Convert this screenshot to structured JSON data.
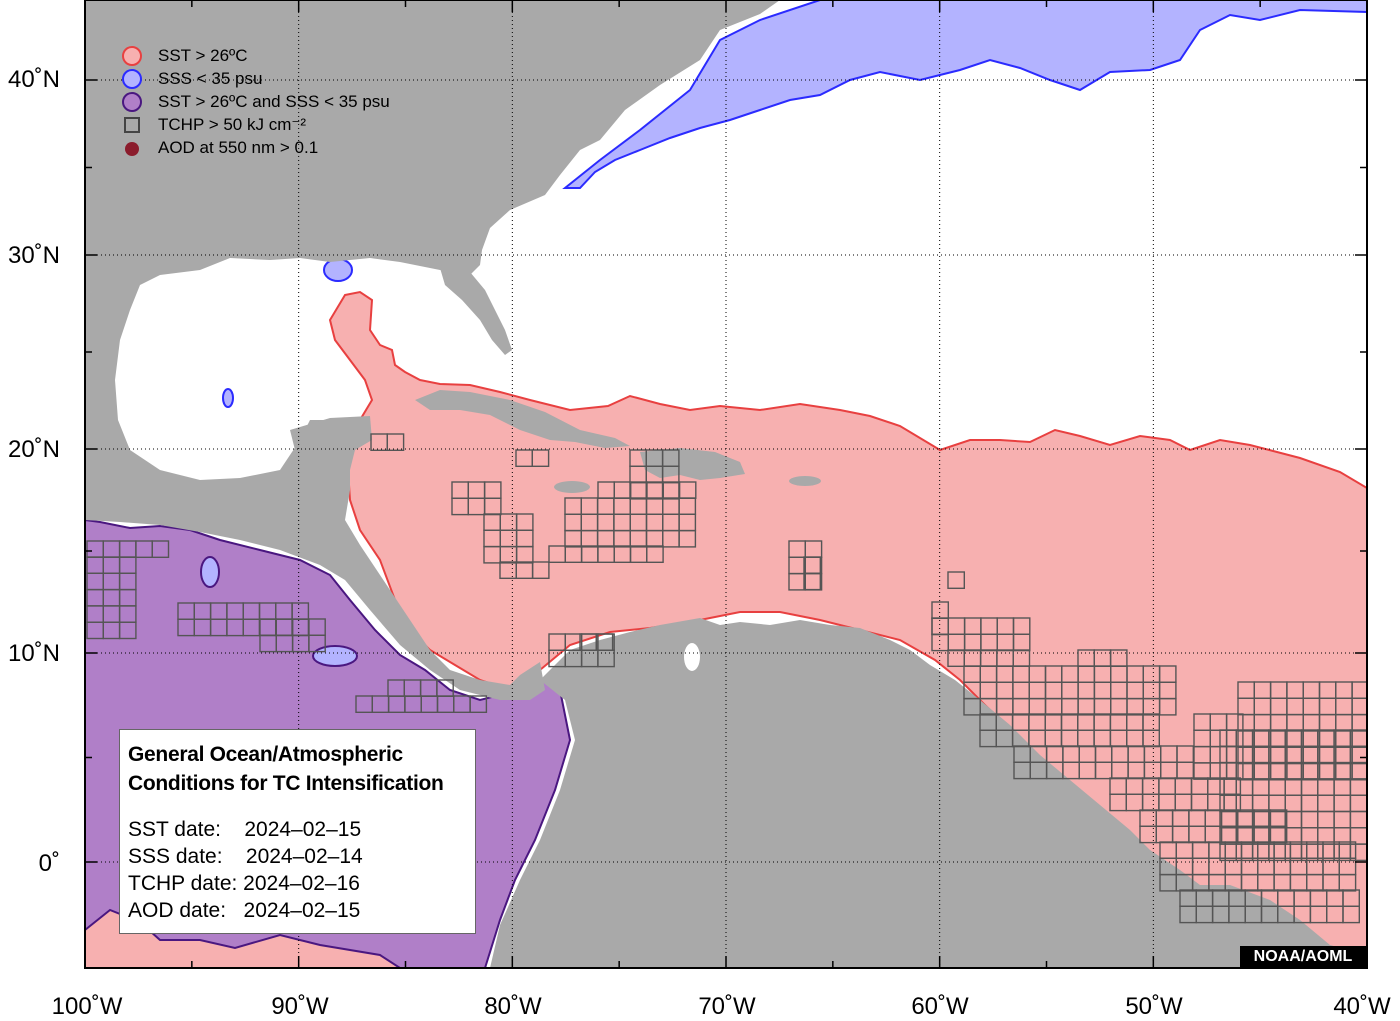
{
  "colors": {
    "land": "#a9a9a9",
    "ocean": "#ffffff",
    "sst": "#f7b0b0",
    "sst_outline": "#e84040",
    "sss": "#b3b3ff",
    "sss_outline": "#2b2bff",
    "both": "#b07fc8",
    "both_outline": "#4a1780",
    "tchp_box": "#555555",
    "aod": "#8b1c2c"
  },
  "axes": {
    "lat_labels": [
      "40˚N",
      "30˚N",
      "20˚N",
      "10˚N",
      "0˚"
    ],
    "lon_labels": [
      "100˚W",
      "90˚W",
      "80˚W",
      "70˚W",
      "60˚W",
      "50˚W",
      "40˚W"
    ],
    "lon_range": [
      -100,
      -40
    ],
    "lat_range": [
      -5,
      44
    ],
    "grid": "dotted"
  },
  "legend": {
    "items": [
      {
        "label": "SST > 26ºC",
        "symbol": "circle-sst"
      },
      {
        "label": "SSS < 35 psu",
        "symbol": "circle-sss"
      },
      {
        "label": "SST > 26ºC and SSS < 35 psu",
        "symbol": "circle-both"
      },
      {
        "label": "TCHP > 50 kJ cm⁻²",
        "symbol": "square-tchp"
      },
      {
        "label": "AOD at 550 nm > 0.1",
        "symbol": "dot-aod"
      }
    ]
  },
  "info": {
    "title_line1": "General Ocean/Atmospheric",
    "title_line2": "Conditions for TC Intensification",
    "sst_date": "SST date:    2024–02–15",
    "sss_date": "SSS date:    2024–02–14",
    "tchp_date": "TCHP date: 2024–02–16",
    "aod_date": "AOD date:   2024–02–15"
  },
  "credit": "NOAA/AOML"
}
